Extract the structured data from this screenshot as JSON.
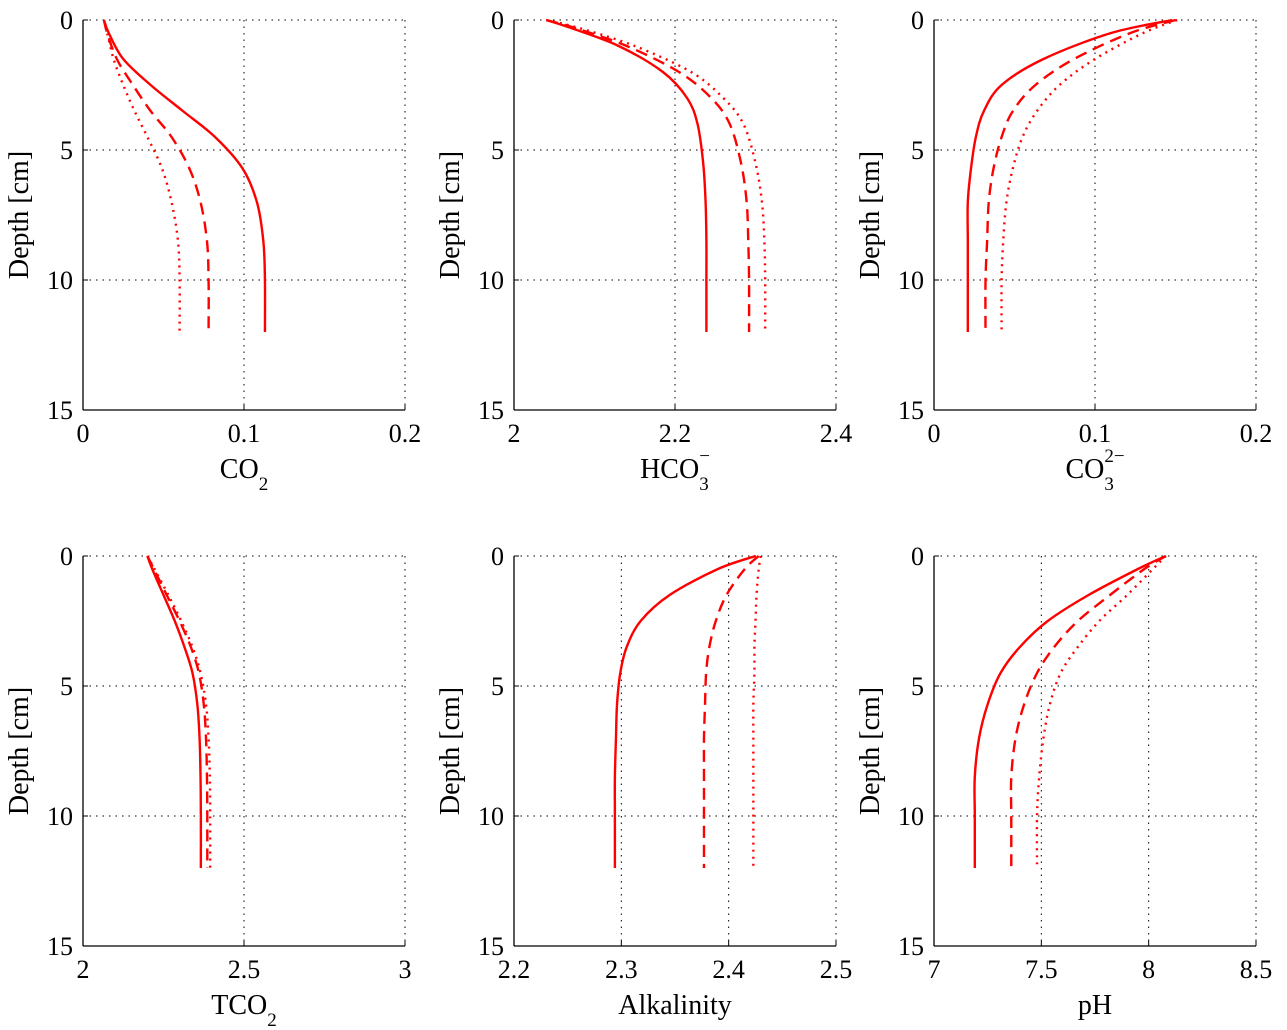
{
  "chart_data": [
    {
      "type": "line",
      "xlabel": "CO",
      "xlabel_sub": "2",
      "ylabel": "Depth [cm]",
      "xlim": [
        0,
        0.2
      ],
      "ylim": [
        15,
        0
      ],
      "xticks": [
        "0",
        "0.1",
        "0.2"
      ],
      "yticks": [
        "0",
        "5",
        "10",
        "15"
      ],
      "grid": true,
      "color": "#ff0000",
      "series": [
        {
          "style": "solid",
          "x": [
            0.013,
            0.016,
            0.025,
            0.042,
            0.062,
            0.082,
            0.099,
            0.108,
            0.112,
            0.113,
            0.113
          ],
          "y": [
            0,
            0.5,
            1.5,
            2.5,
            3.5,
            4.5,
            5.7,
            7,
            8.5,
            10,
            12
          ]
        },
        {
          "style": "dashed",
          "x": [
            0.013,
            0.015,
            0.021,
            0.031,
            0.042,
            0.055,
            0.066,
            0.073,
            0.077,
            0.078,
            0.078
          ],
          "y": [
            0,
            0.5,
            1.5,
            2.5,
            3.5,
            4.5,
            5.7,
            7,
            8.5,
            10,
            12
          ]
        },
        {
          "style": "dotted",
          "x": [
            0.013,
            0.015,
            0.019,
            0.025,
            0.032,
            0.04,
            0.049,
            0.055,
            0.059,
            0.06,
            0.06
          ],
          "y": [
            0,
            0.5,
            1.5,
            2.5,
            3.5,
            4.5,
            5.7,
            7,
            8.5,
            10,
            12
          ]
        }
      ]
    },
    {
      "type": "line",
      "xlabel": "HCO",
      "xlabel_sub": "3",
      "xlabel_sup": "−",
      "ylabel": "Depth [cm]",
      "xlim": [
        2,
        2.4
      ],
      "ylim": [
        15,
        0
      ],
      "xticks": [
        "2",
        "2.2",
        "2.4"
      ],
      "yticks": [
        "0",
        "5",
        "10",
        "15"
      ],
      "grid": true,
      "color": "#ff0000",
      "series": [
        {
          "style": "solid",
          "x": [
            2.04,
            2.07,
            2.13,
            2.185,
            2.215,
            2.228,
            2.235,
            2.238,
            2.239,
            2.239,
            2.239
          ],
          "y": [
            0,
            0.3,
            1,
            2,
            3,
            4,
            5.5,
            7,
            8.5,
            10,
            12
          ]
        },
        {
          "style": "dashed",
          "x": [
            2.04,
            2.075,
            2.14,
            2.205,
            2.245,
            2.268,
            2.282,
            2.289,
            2.291,
            2.292,
            2.292
          ],
          "y": [
            0,
            0.3,
            1,
            2,
            3,
            4,
            5.5,
            7,
            8.5,
            10,
            12
          ]
        },
        {
          "style": "dotted",
          "x": [
            2.04,
            2.08,
            2.15,
            2.22,
            2.26,
            2.285,
            2.3,
            2.308,
            2.311,
            2.312,
            2.312
          ],
          "y": [
            0,
            0.3,
            1,
            2,
            3,
            4,
            5.5,
            7,
            8.5,
            10,
            12
          ]
        }
      ]
    },
    {
      "type": "line",
      "xlabel": "CO",
      "xlabel_sub": "3",
      "xlabel_sup": "2−",
      "ylabel": "Depth [cm]",
      "xlim": [
        0,
        0.2
      ],
      "ylim": [
        15,
        0
      ],
      "xticks": [
        "0",
        "0.1",
        "0.2"
      ],
      "yticks": [
        "0",
        "5",
        "10",
        "15"
      ],
      "grid": true,
      "color": "#ff0000",
      "series": [
        {
          "style": "solid",
          "x": [
            0.148,
            0.11,
            0.068,
            0.042,
            0.031,
            0.026,
            0.023,
            0.021,
            0.021,
            0.021,
            0.021
          ],
          "y": [
            0,
            0.5,
            1.5,
            2.5,
            3.5,
            4.5,
            5.7,
            7,
            8.5,
            10,
            12
          ]
        },
        {
          "style": "dashed",
          "x": [
            0.15,
            0.122,
            0.087,
            0.063,
            0.049,
            0.042,
            0.037,
            0.034,
            0.033,
            0.032,
            0.032
          ],
          "y": [
            0,
            0.5,
            1.5,
            2.5,
            3.5,
            4.5,
            5.7,
            7,
            8.5,
            10,
            12
          ]
        },
        {
          "style": "dotted",
          "x": [
            0.151,
            0.13,
            0.1,
            0.078,
            0.064,
            0.055,
            0.049,
            0.045,
            0.043,
            0.042,
            0.042
          ],
          "y": [
            0,
            0.5,
            1.5,
            2.5,
            3.5,
            4.5,
            5.7,
            7,
            8.5,
            10,
            12
          ]
        }
      ]
    },
    {
      "type": "line",
      "xlabel": "TCO",
      "xlabel_sub": "2",
      "ylabel": "Depth [cm]",
      "xlim": [
        2,
        3
      ],
      "ylim": [
        15,
        0
      ],
      "xticks": [
        "2",
        "2.5",
        "3"
      ],
      "yticks": [
        "0",
        "5",
        "10",
        "15"
      ],
      "grid": true,
      "color": "#ff0000",
      "series": [
        {
          "style": "solid",
          "x": [
            2.2,
            2.215,
            2.25,
            2.285,
            2.315,
            2.34,
            2.355,
            2.362,
            2.365,
            2.366,
            2.366
          ],
          "y": [
            0,
            0.5,
            1.5,
            2.5,
            3.5,
            4.5,
            5.7,
            7,
            8.5,
            10,
            12
          ]
        },
        {
          "style": "dashed",
          "x": [
            2.2,
            2.22,
            2.26,
            2.3,
            2.335,
            2.36,
            2.375,
            2.382,
            2.385,
            2.386,
            2.386
          ],
          "y": [
            0,
            0.5,
            1.5,
            2.5,
            3.5,
            4.5,
            5.7,
            7,
            8.5,
            10,
            12
          ]
        },
        {
          "style": "dotted",
          "x": [
            2.2,
            2.222,
            2.265,
            2.305,
            2.34,
            2.365,
            2.382,
            2.39,
            2.394,
            2.395,
            2.395
          ],
          "y": [
            0,
            0.5,
            1.5,
            2.5,
            3.5,
            4.5,
            5.7,
            7,
            8.5,
            10,
            12
          ]
        }
      ]
    },
    {
      "type": "line",
      "xlabel": "Alkalinity",
      "ylabel": "Depth [cm]",
      "xlim": [
        2.2,
        2.5
      ],
      "ylim": [
        15,
        0
      ],
      "xticks": [
        "2.2",
        "2.3",
        "2.4",
        "2.5"
      ],
      "yticks": [
        "0",
        "5",
        "10",
        "15"
      ],
      "grid": true,
      "color": "#ff0000",
      "series": [
        {
          "style": "solid",
          "x": [
            2.425,
            2.39,
            2.345,
            2.318,
            2.305,
            2.299,
            2.296,
            2.295,
            2.294,
            2.294,
            2.294
          ],
          "y": [
            0,
            0.5,
            1.5,
            2.5,
            3.5,
            4.5,
            5.7,
            7,
            8.5,
            10,
            12
          ]
        },
        {
          "style": "dashed",
          "x": [
            2.428,
            2.415,
            2.398,
            2.388,
            2.382,
            2.379,
            2.378,
            2.377,
            2.377,
            2.377,
            2.377
          ],
          "y": [
            0,
            0.5,
            1.5,
            2.5,
            3.5,
            4.5,
            5.7,
            7,
            8.5,
            10,
            12
          ]
        },
        {
          "style": "dotted",
          "x": [
            2.43,
            2.428,
            2.426,
            2.425,
            2.424,
            2.424,
            2.423,
            2.423,
            2.423,
            2.423,
            2.423
          ],
          "y": [
            0,
            0.5,
            1.5,
            2.5,
            3.5,
            4.5,
            5.7,
            7,
            8.5,
            10,
            12
          ]
        }
      ]
    },
    {
      "type": "line",
      "xlabel": "pH",
      "ylabel": "Depth [cm]",
      "xlim": [
        7,
        8.5
      ],
      "ylim": [
        15,
        0
      ],
      "xticks": [
        "7",
        "7.5",
        "8",
        "8.5"
      ],
      "yticks": [
        "0",
        "5",
        "10",
        "15"
      ],
      "grid": true,
      "color": "#ff0000",
      "series": [
        {
          "style": "solid",
          "x": [
            8.08,
            7.95,
            7.72,
            7.53,
            7.4,
            7.31,
            7.25,
            7.21,
            7.19,
            7.19,
            7.19
          ],
          "y": [
            0,
            0.5,
            1.5,
            2.5,
            3.5,
            4.5,
            5.7,
            7,
            8.5,
            10,
            12
          ]
        },
        {
          "style": "dashed",
          "x": [
            8.08,
            7.98,
            7.82,
            7.67,
            7.56,
            7.48,
            7.42,
            7.38,
            7.36,
            7.36,
            7.36
          ],
          "y": [
            0,
            0.5,
            1.5,
            2.5,
            3.5,
            4.5,
            5.7,
            7,
            8.5,
            10,
            12
          ]
        },
        {
          "style": "dotted",
          "x": [
            8.08,
            8.02,
            7.9,
            7.77,
            7.67,
            7.59,
            7.54,
            7.51,
            7.49,
            7.48,
            7.48
          ],
          "y": [
            0,
            0.5,
            1.5,
            2.5,
            3.5,
            4.5,
            5.7,
            7,
            8.5,
            10,
            12
          ]
        }
      ]
    }
  ]
}
